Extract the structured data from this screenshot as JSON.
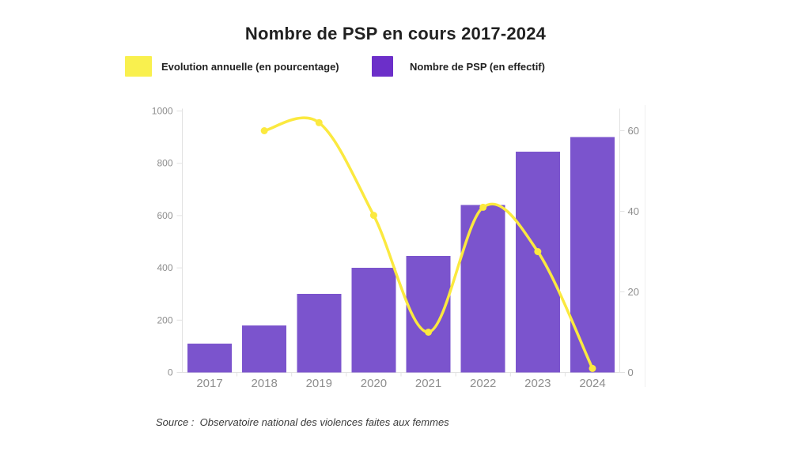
{
  "title": "Nombre de PSP en cours 2017-2024",
  "legend": {
    "items": [
      {
        "label": "Evolution annuelle (en pourcentage)",
        "swatch_color": "#f9f04e"
      },
      {
        "label": "Nombre de PSP (en effectif)",
        "swatch_color": "#6c2fc9"
      }
    ]
  },
  "source": {
    "text": "Source :  Observatoire national des violences faites aux femmes"
  },
  "colors": {
    "bar_fill": "#7b54cd",
    "line_stroke": "#fbe93f",
    "axis_label": "#8e8e8e",
    "axis_line": "#e2e2e2",
    "grid_faint": "#efefef",
    "title_text": "#212121",
    "source_text": "#3a3a3a"
  },
  "chart_data": {
    "type": "bar",
    "subtype": "bar+line combo, dual axis",
    "title": "Nombre de PSP en cours 2017-2024",
    "categories": [
      "2017",
      "2018",
      "2019",
      "2020",
      "2021",
      "2022",
      "2023",
      "2024"
    ],
    "series": [
      {
        "name": "Nombre de PSP (en effectif)",
        "type": "bar",
        "axis": "left",
        "color": "#7b54cd",
        "values": [
          110,
          180,
          300,
          400,
          445,
          640,
          845,
          900
        ]
      },
      {
        "name": "Evolution annuelle (en pourcentage)",
        "type": "line",
        "axis": "right",
        "color": "#fbe93f",
        "categories": [
          "2018",
          "2019",
          "2020",
          "2021",
          "2022",
          "2023",
          "2024"
        ],
        "values": [
          60,
          62,
          39,
          10,
          41,
          30,
          1
        ]
      }
    ],
    "left_axis": {
      "range": [
        0,
        1000
      ],
      "ticks": [
        0,
        200,
        400,
        600,
        800,
        1000
      ]
    },
    "right_axis": {
      "range": [
        0,
        65
      ],
      "ticks": [
        0,
        20,
        40,
        60
      ]
    },
    "grid": "off",
    "legend_position": "top",
    "xlabel": "",
    "ylabel_left": "",
    "ylabel_right": ""
  }
}
